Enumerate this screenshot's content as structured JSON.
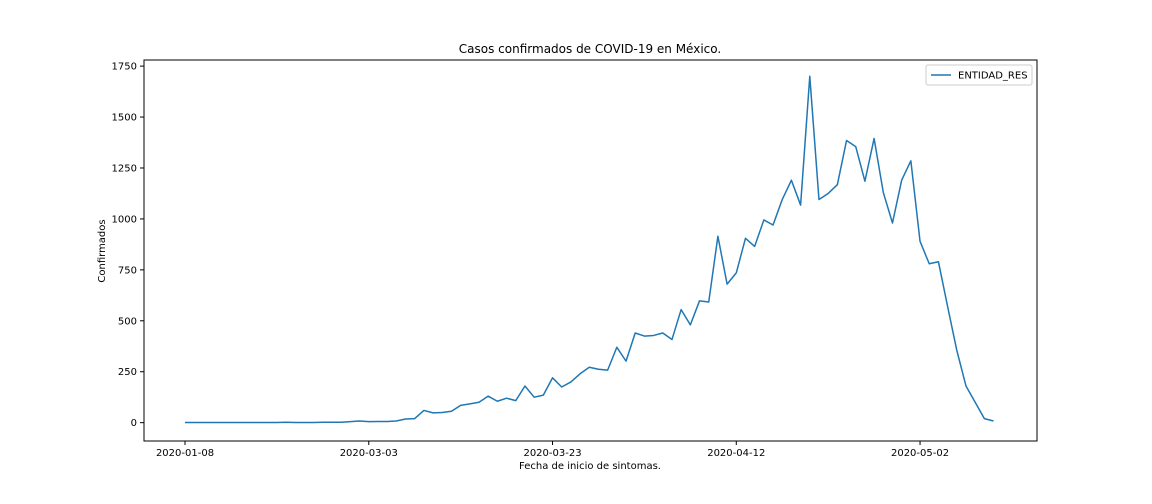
{
  "chart_data": {
    "type": "line",
    "title": "Casos confirmados de COVID-19 en México.",
    "xlabel": "Fecha de inicio de sintomas.",
    "ylabel": "Confirmados",
    "ylim": [
      -90,
      1780
    ],
    "yticks": [
      0,
      250,
      500,
      750,
      1000,
      1250,
      1500,
      1750
    ],
    "xticks": [
      {
        "index": 0,
        "label": "2020-01-08"
      },
      {
        "index": 20,
        "label": "2020-03-03"
      },
      {
        "index": 40,
        "label": "2020-03-23"
      },
      {
        "index": 60,
        "label": "2020-04-12"
      },
      {
        "index": 80,
        "label": "2020-05-02"
      }
    ],
    "legend": {
      "position": "top-right"
    },
    "series": [
      {
        "name": "ENTIDAD_RES",
        "color": "#1f77b4",
        "values": [
          1,
          1,
          1,
          1,
          1,
          1,
          1,
          1,
          1,
          1,
          1,
          2,
          1,
          1,
          1,
          2,
          2,
          2,
          5,
          8,
          5,
          6,
          6,
          8,
          18,
          20,
          60,
          48,
          50,
          56,
          85,
          92,
          100,
          130,
          105,
          120,
          108,
          180,
          125,
          135,
          220,
          175,
          200,
          240,
          272,
          262,
          258,
          370,
          302,
          440,
          425,
          428,
          440,
          408,
          555,
          480,
          598,
          592,
          915,
          680,
          735,
          905,
          865,
          995,
          970,
          1095,
          1190,
          1068,
          1700,
          1095,
          1125,
          1168,
          1385,
          1355,
          1185,
          1395,
          1130,
          980,
          1190,
          1285,
          890,
          780,
          790,
          570,
          355,
          180,
          100,
          20,
          8
        ]
      }
    ]
  }
}
